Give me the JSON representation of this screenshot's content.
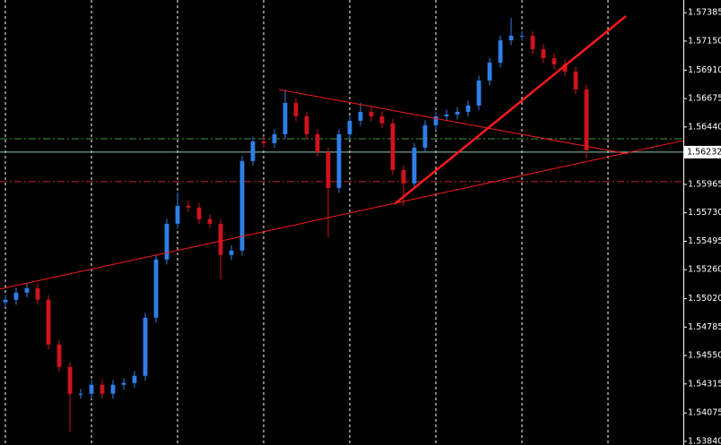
{
  "chart_data": {
    "type": "candlestick",
    "background": "#000000",
    "up_color": "#2f7fe8",
    "down_color": "#d0131b",
    "xlim": [
      -0.5,
      63
    ],
    "ylim": [
      1.5381,
      1.5749
    ],
    "xticks": [
      0,
      8,
      16,
      24,
      32,
      40,
      48,
      56
    ],
    "grid": true,
    "yticks": [
      1.57385,
      {
        "value": 1.5715,
        "label": "1.57150"
      },
      {
        "value": 1.5691,
        "label": "1.56910"
      },
      1.56675,
      {
        "value": 1.5644,
        "label": "1.56440"
      },
      1.55965,
      {
        "value": 1.5573,
        "label": "1.55730"
      },
      1.55495,
      {
        "value": 1.5526,
        "label": "1.55260"
      },
      {
        "value": 1.5502,
        "label": "1.55020"
      },
      1.54785,
      {
        "value": 1.5455,
        "label": "1.54550"
      },
      1.54315,
      1.54075,
      {
        "value": 1.5384,
        "label": "1.53840"
      }
    ],
    "current_price": 1.56232,
    "current_price_color": "#8fc9b4",
    "levels": [
      {
        "value": 1.56342,
        "color": "#3f9a3f"
      },
      {
        "value": 1.55988,
        "color": "#c0282d"
      }
    ],
    "trendlines": [
      {
        "x": [
          -0.5,
          63
        ],
        "y": [
          1.551,
          1.56328
        ],
        "color": "#ff1a1a",
        "width": 1
      },
      {
        "x": [
          25.42,
          57.83
        ],
        "y": [
          1.5675,
          1.56217
        ],
        "color": "#ff1a1a",
        "width": 1
      },
      {
        "x": [
          36.17,
          57.67
        ],
        "y": [
          1.55803,
          1.57357
        ],
        "color": "#ff1a1a",
        "width": 2.5
      }
    ],
    "open": [
      1.5499,
      1.55011,
      1.5507,
      1.55107,
      1.55011,
      1.54641,
      1.54456,
      1.54234,
      1.54234,
      1.54308,
      1.54234,
      1.54308,
      1.54323,
      1.54382,
      1.54863,
      1.55344,
      1.5564,
      1.55788,
      1.55773,
      1.55677,
      1.5564,
      1.55381,
      1.55418,
      1.56158,
      1.56321,
      1.56306,
      1.5638,
      1.56639,
      1.56528,
      1.5638,
      1.56232,
      1.55936,
      1.5638,
      1.56491,
      1.56565,
      1.56528,
      1.56469,
      1.56084,
      1.55973,
      1.56269,
      1.56454,
      1.56528,
      1.56543,
      1.56565,
      1.56617,
      1.56824,
      1.56972,
      1.57157,
      1.57194,
      1.57194,
      1.57083,
      1.57009,
      1.56957,
      1.56898,
      1.5675
    ],
    "high": [
      1.55051,
      1.5511,
      1.55147,
      1.55147,
      1.55051,
      1.54681,
      1.54496,
      1.54274,
      1.54348,
      1.54348,
      1.54348,
      1.54363,
      1.54422,
      1.54903,
      1.55384,
      1.5568,
      1.55899,
      1.55828,
      1.55813,
      1.55717,
      1.5568,
      1.55458,
      1.56198,
      1.56361,
      1.56361,
      1.5642,
      1.5675,
      1.56679,
      1.56568,
      1.5642,
      1.56272,
      1.5642,
      1.56531,
      1.56639,
      1.56605,
      1.56568,
      1.56509,
      1.56124,
      1.56309,
      1.56494,
      1.56568,
      1.56583,
      1.56605,
      1.56657,
      1.56864,
      1.57012,
      1.57197,
      1.57342,
      1.57234,
      1.57234,
      1.57123,
      1.57049,
      1.56997,
      1.56938,
      1.5679
    ],
    "low": [
      1.5495,
      1.54971,
      1.5503,
      1.54971,
      1.54601,
      1.54416,
      1.5392,
      1.54194,
      1.54194,
      1.54194,
      1.54194,
      1.54268,
      1.54283,
      1.54342,
      1.54823,
      1.55304,
      1.556,
      1.55733,
      1.55637,
      1.556,
      1.55181,
      1.55341,
      1.55378,
      1.56118,
      1.56266,
      1.56266,
      1.5634,
      1.56488,
      1.5634,
      1.56192,
      1.55529,
      1.55896,
      1.5634,
      1.56451,
      1.56488,
      1.56429,
      1.56044,
      1.55788,
      1.55933,
      1.56229,
      1.56414,
      1.56488,
      1.56503,
      1.56525,
      1.56577,
      1.56784,
      1.56932,
      1.57117,
      1.57154,
      1.57043,
      1.56969,
      1.56917,
      1.56858,
      1.5671,
      1.5618
    ],
    "close": [
      1.55011,
      1.5507,
      1.55107,
      1.55011,
      1.54641,
      1.54456,
      1.54234,
      1.54234,
      1.54308,
      1.54234,
      1.54308,
      1.54323,
      1.54382,
      1.54863,
      1.55344,
      1.5564,
      1.55788,
      1.55773,
      1.55677,
      1.5564,
      1.55381,
      1.55418,
      1.56158,
      1.56321,
      1.56306,
      1.5638,
      1.56639,
      1.56528,
      1.5638,
      1.56232,
      1.55936,
      1.5638,
      1.56491,
      1.56565,
      1.56528,
      1.56469,
      1.56084,
      1.55973,
      1.56269,
      1.56454,
      1.56528,
      1.56543,
      1.56565,
      1.56617,
      1.56824,
      1.56972,
      1.57157,
      1.57194,
      1.57194,
      1.57083,
      1.57009,
      1.56957,
      1.56898,
      1.5675,
      1.56247
    ]
  }
}
